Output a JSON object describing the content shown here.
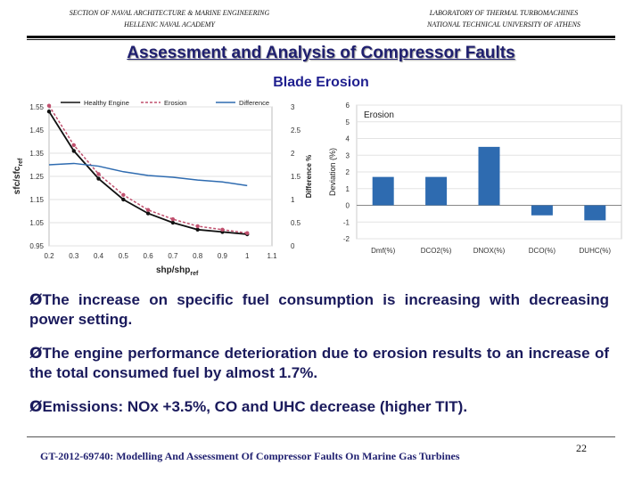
{
  "header": {
    "left_line1": "SECTION OF NAVAL ARCHITECTURE & MARINE ENGINEERING",
    "left_line2": "HELLENIC NAVAL ACADEMY",
    "right_line1": "LABORATORY OF THERMAL TURBOMACHINES",
    "right_line2": "NATIONAL TECHNICAL UNIVERSITY OF ATHENS"
  },
  "title": "Assessment and Analysis of Compressor Faults",
  "subtitle": "Blade Erosion",
  "bullets": [
    "The increase on specific fuel consumption is increasing with decreasing power setting.",
    "The engine performance deterioration due to erosion results to an increase of the total consumed fuel by almost 1.7%.",
    "Emissions: NOx +3.5%, CO and UHC decrease (higher TIT)."
  ],
  "bullet_marker": "Ø",
  "footer": "GT-2012-69740: Modelling And Assessment Of Compressor Faults On Marine Gas Turbines",
  "page_number": "22",
  "chart_data": [
    {
      "type": "line",
      "legend": [
        "Healthy Engine",
        "Erosion",
        "Difference"
      ],
      "xlabel": "shp/shp",
      "xlabel_sub": "ref",
      "ylabel": "sfc/sfc",
      "ylabel_sub": "ref",
      "y2label": "Difference %",
      "x_ticks": [
        "0.2",
        "0.3",
        "0.4",
        "0.5",
        "0.6",
        "0.7",
        "0.8",
        "0.9",
        "1",
        "1.1"
      ],
      "y_ticks": [
        "0.95",
        "1.05",
        "1.15",
        "1.25",
        "1.35",
        "1.45",
        "1.55"
      ],
      "y2_ticks": [
        "0",
        "0.5",
        "1",
        "1.5",
        "2",
        "2.5",
        "3"
      ],
      "xlim": [
        0.2,
        1.1
      ],
      "ylim": [
        0.95,
        1.55
      ],
      "y2lim": [
        0,
        3
      ],
      "series": [
        {
          "name": "Healthy Engine",
          "color": "#111111",
          "axis": "left",
          "x": [
            0.2,
            0.3,
            0.4,
            0.5,
            0.6,
            0.7,
            0.8,
            0.9,
            1.0
          ],
          "y": [
            1.53,
            1.36,
            1.24,
            1.15,
            1.09,
            1.05,
            1.02,
            1.01,
            1.0
          ]
        },
        {
          "name": "Erosion",
          "color": "#c0506e",
          "axis": "left",
          "x": [
            0.2,
            0.3,
            0.4,
            0.5,
            0.6,
            0.7,
            0.8,
            0.9,
            1.0
          ],
          "y": [
            1.555,
            1.385,
            1.26,
            1.17,
            1.105,
            1.065,
            1.035,
            1.02,
            1.005
          ]
        },
        {
          "name": "Difference",
          "color": "#2e6bb0",
          "axis": "right",
          "x": [
            0.2,
            0.3,
            0.4,
            0.5,
            0.6,
            0.7,
            0.8,
            0.9,
            1.0
          ],
          "y": [
            1.75,
            1.78,
            1.72,
            1.6,
            1.52,
            1.48,
            1.42,
            1.38,
            1.3
          ]
        }
      ]
    },
    {
      "type": "bar",
      "legend": [
        "Erosion"
      ],
      "ylabel": "Deviation (%)",
      "categories": [
        "Dmf(%)",
        "DCO2(%)",
        "DNOX(%)",
        "DCO(%)",
        "DUHC(%)"
      ],
      "y_ticks": [
        "-2",
        "-1",
        "0",
        "1",
        "2",
        "3",
        "4",
        "5",
        "6"
      ],
      "ylim": [
        -2,
        6
      ],
      "color": "#2e6bb0",
      "values": [
        1.7,
        1.7,
        3.5,
        -0.6,
        -0.9
      ]
    }
  ]
}
